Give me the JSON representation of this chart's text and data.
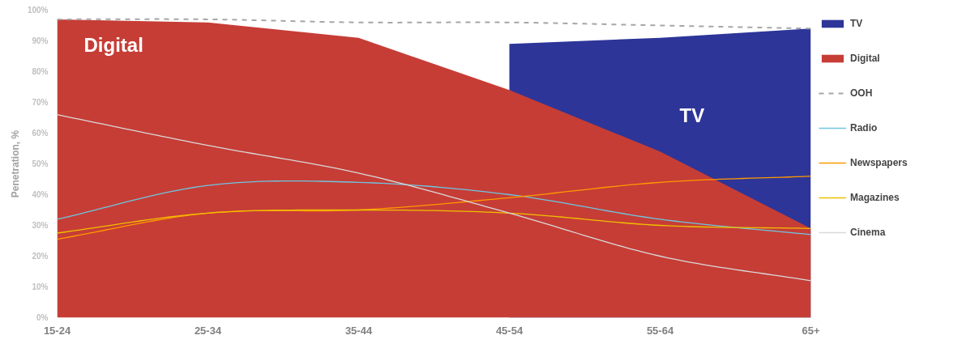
{
  "chart_data": {
    "type": "area",
    "ylabel": "Penetration, %",
    "categories": [
      "15-24",
      "25-34",
      "35-44",
      "45-54",
      "55-64",
      "65+"
    ],
    "ylim": [
      0,
      100
    ],
    "yticks": [
      {
        "value": 0,
        "label": "0%"
      },
      {
        "value": 10,
        "label": "10%"
      },
      {
        "value": 20,
        "label": "20%"
      },
      {
        "value": 30,
        "label": "30%"
      },
      {
        "value": 40,
        "label": "40%"
      },
      {
        "value": 50,
        "label": "50%"
      },
      {
        "value": 60,
        "label": "60%"
      },
      {
        "value": 70,
        "label": "70%"
      },
      {
        "value": 80,
        "label": "80%"
      },
      {
        "value": 90,
        "label": "90%"
      },
      {
        "value": 100,
        "label": "100%"
      }
    ],
    "grid": false,
    "legend": "right",
    "series": [
      {
        "name": "TV",
        "color": "#2d3599",
        "values": [
          null,
          null,
          null,
          89,
          91,
          94
        ]
      },
      {
        "name": "Digital",
        "color": "#c63d36",
        "values": [
          97,
          96,
          91,
          74,
          54,
          29
        ]
      },
      {
        "name": "OOH",
        "type": "line",
        "line_style": "dashed",
        "color": "#a6a6a6",
        "values": [
          97,
          97,
          96,
          96,
          95,
          94
        ]
      },
      {
        "name": "Radio",
        "type": "line",
        "color": "#6ec6e0",
        "values": [
          32,
          43,
          44,
          40,
          32,
          27
        ]
      },
      {
        "name": "Newspapers",
        "type": "line",
        "color": "#ff9900",
        "values": [
          25.5,
          34,
          35,
          39,
          44,
          46
        ]
      },
      {
        "name": "Magazines",
        "type": "line",
        "color": "#f0c000",
        "values": [
          27.5,
          34,
          35,
          34,
          30,
          29
        ]
      },
      {
        "name": "Cinema",
        "type": "line",
        "color": "#d9d9d9",
        "values": [
          66,
          56,
          47,
          34,
          20,
          12
        ]
      }
    ],
    "annotations": [
      "Digital",
      "TV"
    ]
  }
}
